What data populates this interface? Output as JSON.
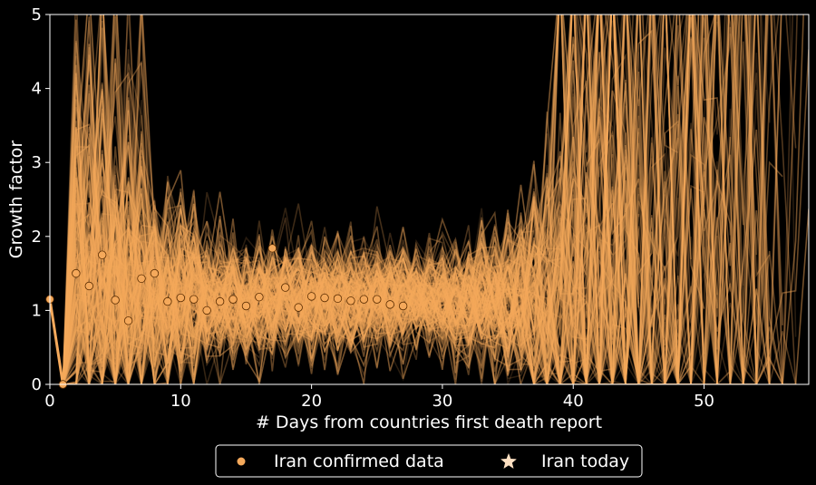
{
  "chart_data": {
    "type": "line",
    "xlabel": "# Days from countries first death report",
    "ylabel": "Growth factor",
    "xlim": [
      0,
      58
    ],
    "ylim": [
      0,
      5
    ],
    "xticks": [
      "0",
      "10",
      "20",
      "30",
      "40",
      "50"
    ],
    "yticks": [
      "0",
      "1",
      "2",
      "3",
      "4",
      "5"
    ],
    "grid": false,
    "legend_position": "bottom-center",
    "colors": {
      "background": "#000000",
      "simulation": "#f5a95b",
      "marker_fill": "#f5a95b",
      "marker_edge": "#5a2c00",
      "star": "#fde0c2",
      "axis": "#ffffff"
    },
    "series": [
      {
        "name": "Iran confirmed data",
        "x": [
          0,
          1,
          2,
          3,
          4,
          5,
          6,
          7,
          8,
          9,
          10,
          11,
          12,
          13,
          14,
          15,
          16,
          17,
          18,
          19,
          20,
          21,
          22,
          23,
          24,
          25,
          26,
          27
        ],
        "y": [
          1.15,
          0.0,
          1.5,
          1.33,
          1.75,
          1.14,
          0.86,
          1.43,
          1.5,
          1.12,
          1.17,
          1.15,
          1.0,
          1.12,
          1.15,
          1.06,
          1.18,
          1.84,
          1.31,
          1.04,
          1.19,
          1.17,
          1.16,
          1.13,
          1.15,
          1.15,
          1.08,
          1.06
        ]
      },
      {
        "name": "Iran today",
        "x": [],
        "y": []
      }
    ],
    "simulation": {
      "description_hidden": false,
      "count": 150
    }
  }
}
